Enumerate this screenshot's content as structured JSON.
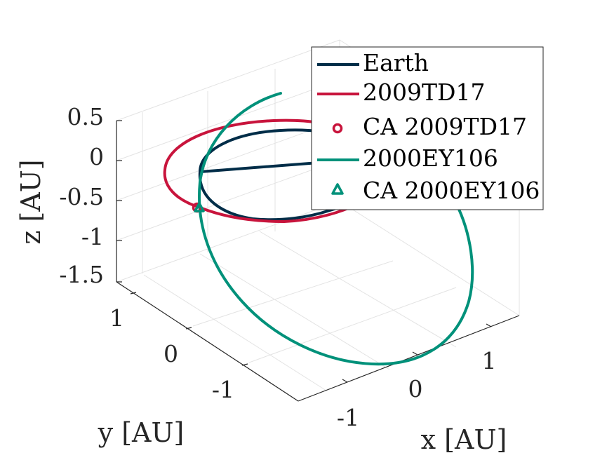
{
  "chart_data": {
    "type": "line3d",
    "title": "",
    "xlabel": "x [AU]",
    "ylabel": "y [AU]",
    "zlabel": "z [AU]",
    "xlim": [
      -1.5,
      1.5
    ],
    "ylim": [
      -1.5,
      1.5
    ],
    "zlim": [
      -1.5,
      0.5
    ],
    "xticks": [
      "-1",
      "0",
      "1"
    ],
    "yticks": [
      "-1",
      "0",
      "1"
    ],
    "zticks": [
      "0.5",
      "0",
      "-0.5",
      "-1",
      "-1.5"
    ],
    "grid": true,
    "legend_position": "top-right",
    "series": [
      {
        "name": "Earth",
        "kind": "line",
        "color": "#002d48",
        "shape": "circular orbit, radius 1 AU, in the z = 0 plane"
      },
      {
        "name": "2009TD17",
        "kind": "line",
        "color": "#c8143c",
        "shape": "elliptical orbit, slightly inclined, passing near Earth's orbit"
      },
      {
        "name": "CA 2009TD17",
        "kind": "marker",
        "marker": "circle",
        "color": "#c8143c",
        "xyz": [
          -0.77,
          -0.67,
          -0.05
        ]
      },
      {
        "name": "2000EY106",
        "kind": "line",
        "color": "#00917a",
        "shape": "highly inclined elliptical orbit reaching about z = -1.5 AU"
      },
      {
        "name": "CA 2000EY106",
        "kind": "marker",
        "marker": "triangle",
        "color": "#00917a",
        "xyz": [
          -0.75,
          -0.68,
          -0.05
        ]
      }
    ]
  }
}
